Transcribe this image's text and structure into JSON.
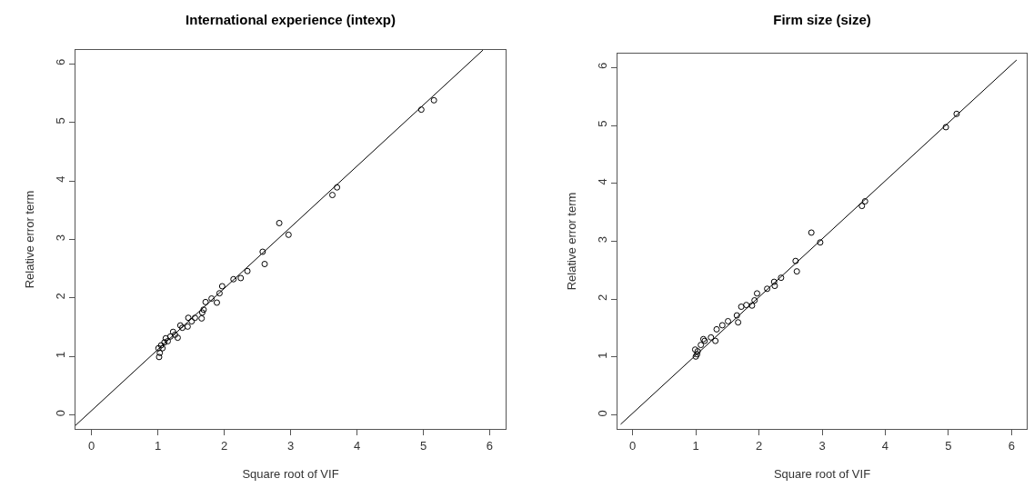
{
  "chart_data": [
    {
      "type": "scatter",
      "title": "International experience (intexp)",
      "xlabel": "Square root of VIF",
      "ylabel": "Relative error term",
      "xlim": [
        -0.24,
        6.24
      ],
      "ylim": [
        -0.24,
        6.24
      ],
      "xticks": [
        0,
        1,
        2,
        3,
        4,
        5,
        6
      ],
      "yticks": [
        0,
        1,
        2,
        3,
        4,
        5,
        6
      ],
      "grid": false,
      "marker": "circle",
      "series": [
        {
          "color": "#000000",
          "x": [
            5.16,
            4.97,
            3.7,
            3.63,
            2.83,
            2.97,
            2.58,
            2.61,
            2.35,
            2.25,
            2.14,
            1.97,
            1.93,
            1.81,
            1.89,
            1.72,
            1.69,
            1.67,
            1.66,
            1.56,
            1.46,
            1.45,
            1.51,
            1.34,
            1.3,
            1.23,
            1.19,
            1.12,
            1.1,
            1.05,
            1.01,
            1.03,
            1.02,
            1.07,
            1.15,
            1.26,
            1.37
          ],
          "values": [
            5.38,
            5.22,
            3.89,
            3.76,
            3.28,
            3.08,
            2.79,
            2.58,
            2.46,
            2.34,
            2.32,
            2.2,
            2.08,
            1.99,
            1.92,
            1.93,
            1.8,
            1.75,
            1.65,
            1.66,
            1.66,
            1.51,
            1.6,
            1.53,
            1.32,
            1.42,
            1.34,
            1.31,
            1.24,
            1.19,
            1.14,
            1.06,
            0.99,
            1.14,
            1.26,
            1.37,
            1.49
          ]
        },
        {
          "type": "line",
          "marker": "none",
          "color": "#000000",
          "x": [
            -0.24,
            5.9
          ],
          "values": [
            -0.18,
            6.24
          ]
        }
      ]
    },
    {
      "type": "scatter",
      "title": "Firm size (size)",
      "xlabel": "Square root of VIF",
      "ylabel": "Relative error term",
      "xlim": [
        -0.24,
        6.24
      ],
      "ylim": [
        -0.24,
        6.24
      ],
      "xticks": [
        0,
        1,
        2,
        3,
        4,
        5,
        6
      ],
      "yticks": [
        0,
        1,
        2,
        3,
        4,
        5,
        6
      ],
      "grid": false,
      "marker": "circle",
      "series": [
        {
          "color": "#000000",
          "x": [
            5.13,
            4.96,
            3.68,
            3.63,
            2.83,
            2.97,
            2.58,
            2.6,
            2.35,
            2.24,
            2.25,
            2.13,
            1.97,
            1.93,
            1.89,
            1.8,
            1.72,
            1.67,
            1.65,
            1.51,
            1.42,
            1.33,
            1.31,
            1.24,
            1.14,
            1.12,
            1.08,
            1.03,
            1.0,
            0.99,
            1.02
          ],
          "values": [
            5.2,
            4.97,
            3.69,
            3.61,
            3.15,
            2.98,
            2.66,
            2.48,
            2.37,
            2.3,
            2.23,
            2.18,
            2.1,
            1.98,
            1.89,
            1.9,
            1.87,
            1.6,
            1.72,
            1.62,
            1.55,
            1.48,
            1.28,
            1.34,
            1.28,
            1.31,
            1.21,
            1.1,
            1.01,
            1.13,
            1.05
          ]
        },
        {
          "type": "line",
          "marker": "none",
          "color": "#000000",
          "x": [
            -0.19,
            6.08
          ],
          "values": [
            -0.16,
            6.13
          ]
        }
      ]
    }
  ]
}
